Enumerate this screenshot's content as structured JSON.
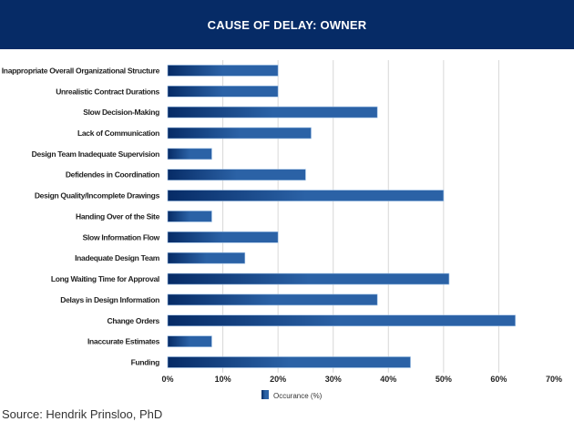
{
  "chart_data": {
    "type": "bar",
    "orientation": "horizontal",
    "title": "CAUSE OF DELAY: OWNER",
    "categories": [
      "Inappropriate Overall Organizational Structure",
      "Unrealistic Contract Durations",
      "Slow Decision-Making",
      "Lack of Communication",
      "Design Team Inadequate Supervision",
      "Defidendes in Coordination",
      "Design Quality/Incomplete Drawings",
      "Handing Over of the Site",
      "Slow Information Flow",
      "Inadequate Design Team",
      "Long Waiting Time for Approval",
      "Delays in Design Information",
      "Change Orders",
      "Inaccurate Estimates",
      "Funding"
    ],
    "series": [
      {
        "name": "Occurance (%)",
        "values": [
          20,
          20,
          38,
          26,
          8,
          25,
          50,
          8,
          20,
          14,
          51,
          38,
          63,
          8,
          44
        ]
      }
    ],
    "xlim": [
      0,
      70
    ],
    "xticks": [
      "0%",
      "10%",
      "20%",
      "30%",
      "40%",
      "50%",
      "60%",
      "70%"
    ],
    "grid": true,
    "legend": "bottom",
    "colors": {
      "header": "#062b66",
      "bar_dark": "#062b66",
      "bar_light": "#2b62a6"
    }
  },
  "source": "Source: Hendrik Prinsloo, PhD"
}
